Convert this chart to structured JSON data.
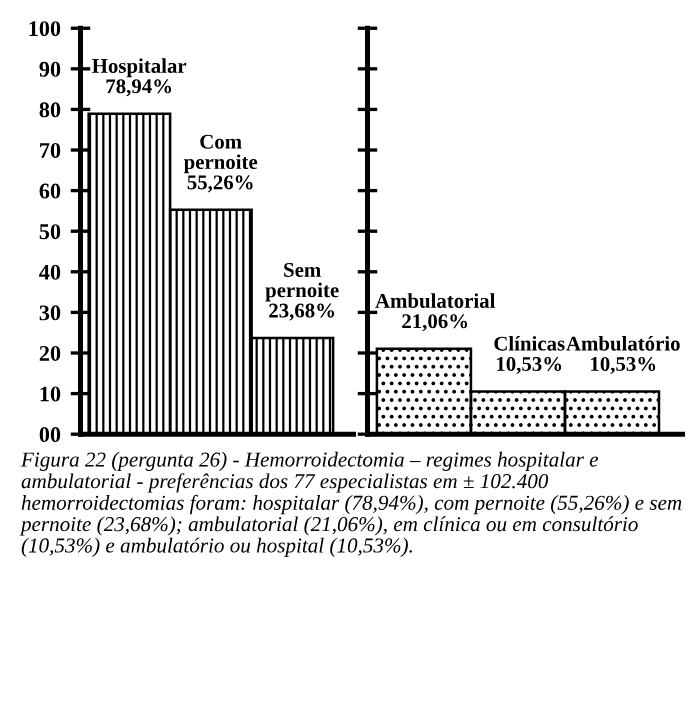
{
  "chart_data": [
    {
      "type": "bar",
      "categories": [
        "Hospitalar",
        "Com pernoite",
        "Sem pernoite"
      ],
      "values": [
        78.94,
        55.26,
        23.68
      ],
      "value_labels": [
        "78,94%",
        "55,26%",
        "23,68%"
      ],
      "color": "#000000",
      "ylim": [
        0,
        100
      ],
      "yticks": [
        {
          "value": 0,
          "label": "00"
        },
        10,
        20,
        30,
        40,
        50,
        60,
        70,
        80,
        90,
        100
      ],
      "grid": false,
      "annotations": [
        "Figura 22 (pergunta 26) - Hemorroidectomia – regimes hospitalar e ambulatorial - preferências dos 77 especialistas em ± 102.400 hemorroidectomias foram: hospitalar (78,94%), com pernoite (55,26%) e sem pernoite (23,68%); ambulatorial (21,06%), em clínica ou em consultório (10,53%) e ambulatório ou hospital (10,53%)."
      ]
    },
    {
      "type": "bar",
      "categories": [
        "Ambulatorial",
        "Clínicas",
        "Ambulatório"
      ],
      "values": [
        21.06,
        10.53,
        10.53
      ],
      "value_labels": [
        "21,06%",
        "10,53%",
        "10,53%"
      ],
      "color": "#000000",
      "ylim": [
        0,
        100
      ],
      "yticks": [
        0,
        10,
        20,
        30,
        40,
        50,
        60,
        70,
        80,
        90,
        100
      ],
      "tick_labels": false,
      "grid": false
    }
  ]
}
